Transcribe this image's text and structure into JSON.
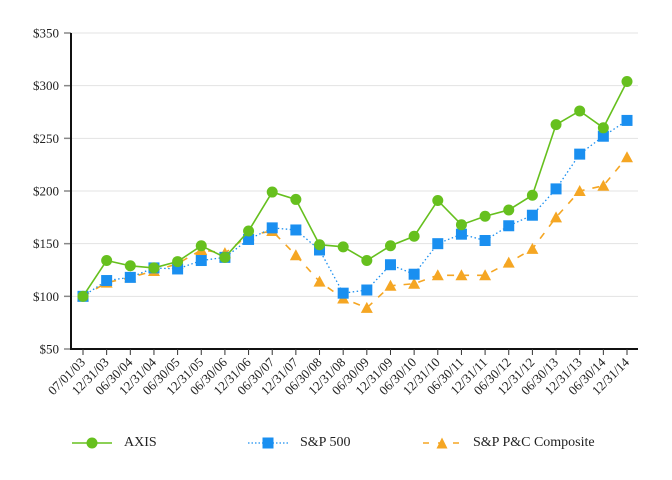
{
  "chart_data": {
    "type": "line",
    "title": "",
    "xlabel": "",
    "ylabel": "",
    "ylim": [
      50,
      350
    ],
    "yticks": [
      "$50",
      "$100",
      "$150",
      "$200",
      "$250",
      "$300",
      "$350"
    ],
    "ytick_values": [
      50,
      100,
      150,
      200,
      250,
      300,
      350
    ],
    "grid": true,
    "legend_position": "bottom",
    "categories": [
      "07/01/03",
      "12/31/03",
      "06/30/04",
      "12/31/04",
      "06/30/05",
      "12/31/05",
      "06/30/06",
      "12/31/06",
      "06/30/07",
      "12/31/07",
      "06/30/08",
      "12/31/08",
      "06/30/09",
      "12/31/09",
      "06/30/10",
      "12/31/10",
      "06/30/11",
      "12/31/11",
      "06/30/12",
      "12/31/12",
      "06/30/13",
      "12/31/13",
      "06/30/14",
      "12/31/14"
    ],
    "series": [
      {
        "name": "AXIS",
        "color": "#66c01e",
        "marker": "circle",
        "line": "solid",
        "values": [
          100,
          134,
          129,
          127,
          133,
          148,
          137,
          162,
          199,
          192,
          149,
          147,
          134,
          148,
          157,
          191,
          168,
          176,
          182,
          196,
          263,
          276,
          260,
          304
        ]
      },
      {
        "name": "S&P 500",
        "color": "#1a8ff0",
        "marker": "square",
        "line": "dotted",
        "values": [
          100,
          115,
          118,
          127,
          126,
          134,
          137,
          154,
          165,
          163,
          144,
          103,
          106,
          130,
          121,
          150,
          159,
          153,
          167,
          177,
          202,
          235,
          252,
          267
        ]
      },
      {
        "name": "S&P P&C Composite",
        "color": "#f5a623",
        "marker": "triangle",
        "line": "dashed",
        "values": [
          100,
          113,
          118,
          124,
          131,
          144,
          141,
          158,
          162,
          139,
          114,
          98,
          89,
          110,
          112,
          120,
          120,
          120,
          132,
          145,
          175,
          200,
          205,
          232
        ]
      }
    ]
  }
}
